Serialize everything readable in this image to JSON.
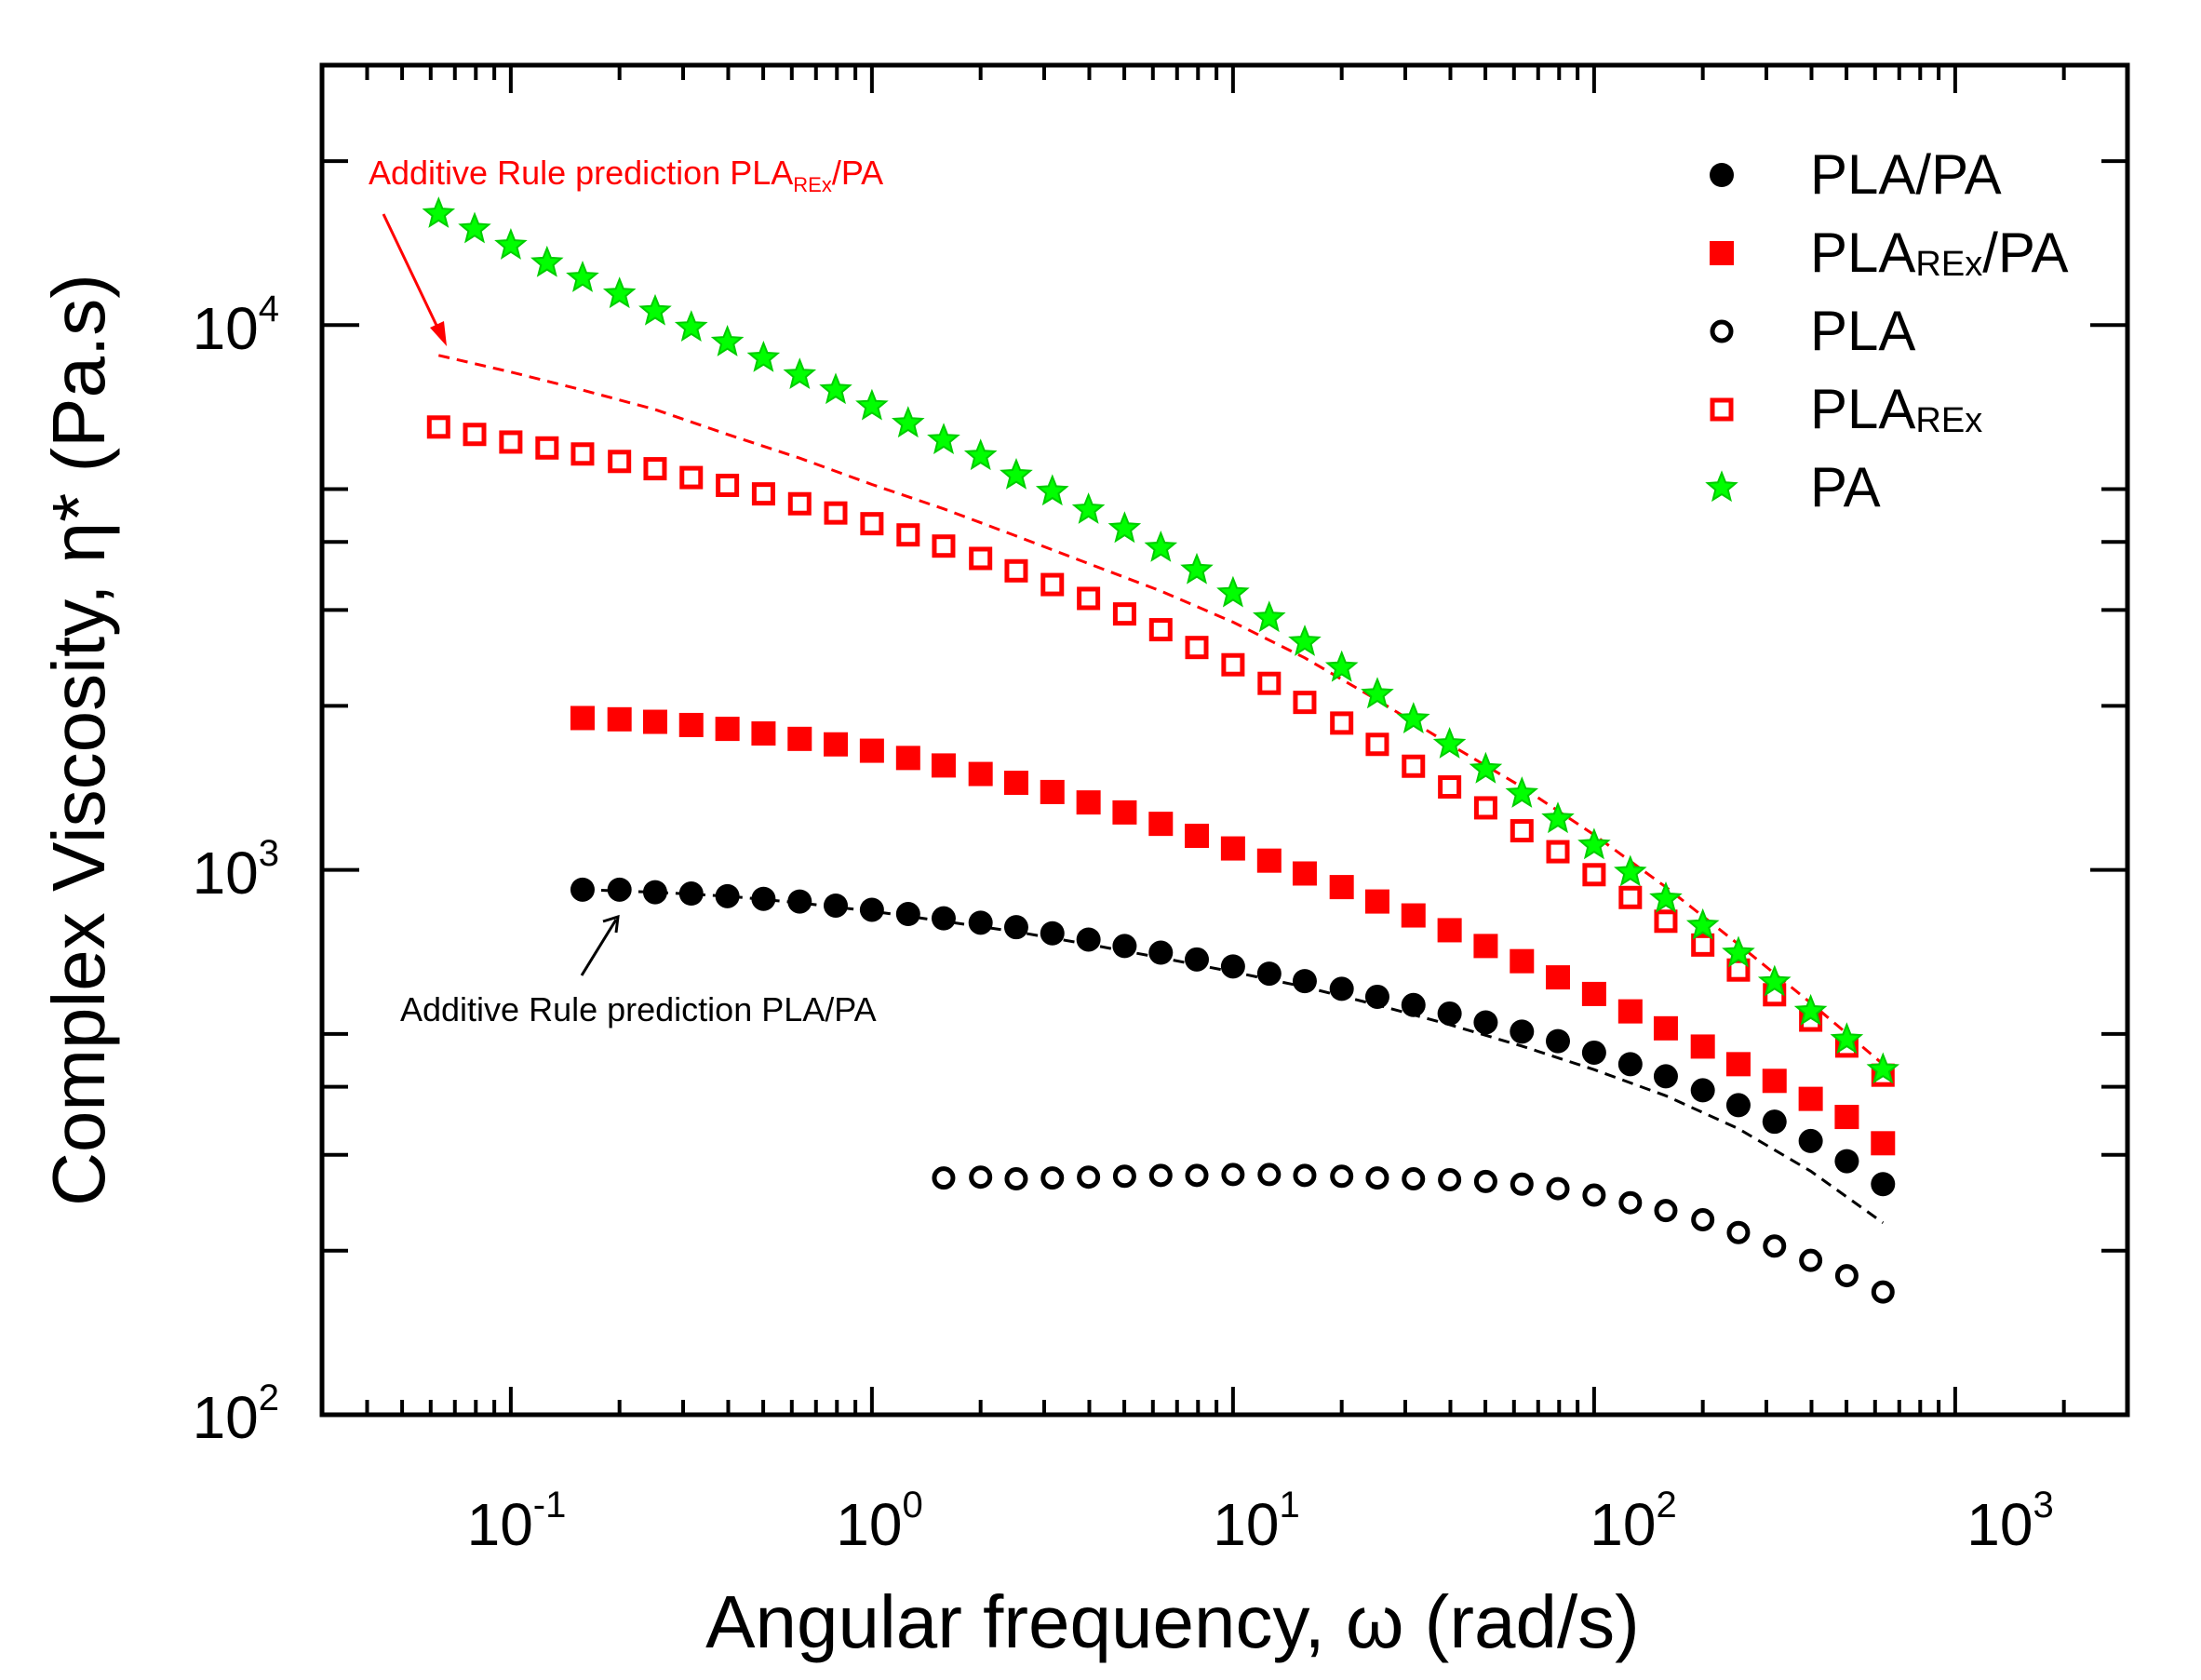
{
  "chart_data": {
    "type": "scatter",
    "xscale": "log",
    "yscale": "log",
    "xlim": [
      0.03,
      3000
    ],
    "ylim": [
      100,
      30000
    ],
    "xlabel": "Angular frequency, ω (rad/s)",
    "ylabel": "Complex Viscosity, η* (Pa.s)",
    "x_ticks": [
      {
        "base": "10",
        "exp": "-1",
        "value": 0.1
      },
      {
        "base": "10",
        "exp": "0",
        "value": 1
      },
      {
        "base": "10",
        "exp": "1",
        "value": 10
      },
      {
        "base": "10",
        "exp": "2",
        "value": 100
      },
      {
        "base": "10",
        "exp": "3",
        "value": 1000
      }
    ],
    "y_ticks": [
      {
        "base": "10",
        "exp": "2",
        "value": 100
      },
      {
        "base": "10",
        "exp": "3",
        "value": 1000
      },
      {
        "base": "10",
        "exp": "4",
        "value": 10000
      }
    ],
    "series": [
      {
        "name": "PLA/PA",
        "main": "PLA/PA",
        "sub": "",
        "suffix": "",
        "marker": "circle-filled",
        "color": "#000000",
        "x": [
          0.158,
          0.2,
          0.251,
          0.316,
          0.398,
          0.501,
          0.631,
          0.794,
          1.0,
          1.26,
          1.58,
          2.0,
          2.51,
          3.16,
          3.98,
          5.01,
          6.31,
          7.94,
          10.0,
          12.6,
          15.8,
          20.0,
          25.1,
          31.6,
          39.8,
          50.1,
          63.1,
          79.4,
          100.0,
          126.0,
          158.0,
          200.0,
          251.0,
          316.0,
          398.0,
          501.0,
          631.0
        ],
        "y": [
          920,
          920,
          910,
          905,
          895,
          885,
          875,
          860,
          845,
          830,
          815,
          800,
          785,
          765,
          745,
          725,
          705,
          685,
          665,
          645,
          625,
          605,
          585,
          565,
          545,
          525,
          505,
          485,
          462,
          440,
          418,
          394,
          370,
          345,
          318,
          292,
          265
        ]
      },
      {
        "name": "PLAREx/PA",
        "main": "PLA",
        "sub": "REx",
        "suffix": "/PA",
        "marker": "square-filled",
        "color": "#ff0000",
        "x": [
          0.158,
          0.2,
          0.251,
          0.316,
          0.398,
          0.501,
          0.631,
          0.794,
          1.0,
          1.26,
          1.58,
          2.0,
          2.51,
          3.16,
          3.98,
          5.01,
          6.31,
          7.94,
          10.0,
          12.6,
          15.8,
          20.0,
          25.1,
          31.6,
          39.8,
          50.1,
          63.1,
          79.4,
          100.0,
          126.0,
          158.0,
          200.0,
          251.0,
          316.0,
          398.0,
          501.0,
          631.0
        ],
        "y": [
          1900,
          1890,
          1870,
          1845,
          1815,
          1780,
          1740,
          1700,
          1655,
          1605,
          1555,
          1500,
          1445,
          1390,
          1330,
          1275,
          1215,
          1155,
          1095,
          1040,
          985,
          930,
          875,
          825,
          775,
          725,
          680,
          635,
          592,
          550,
          512,
          474,
          440,
          410,
          380,
          352,
          315
        ]
      },
      {
        "name": "PLA",
        "main": "PLA",
        "sub": "",
        "suffix": "",
        "marker": "circle-open",
        "color": "#000000",
        "x": [
          1.58,
          2.0,
          2.51,
          3.16,
          3.98,
          5.01,
          6.31,
          7.94,
          10.0,
          12.6,
          15.8,
          20.0,
          25.1,
          31.6,
          39.8,
          50.1,
          63.1,
          79.4,
          100.0,
          126.0,
          158.0,
          200.0,
          251.0,
          316.0,
          398.0,
          501.0,
          631.0
        ],
        "y": [
          272,
          273,
          271,
          272,
          273,
          274,
          275,
          275,
          276,
          276,
          275,
          274,
          272,
          271,
          270,
          268,
          265,
          260,
          253,
          245,
          237,
          228,
          216,
          204,
          192,
          180,
          168
        ]
      },
      {
        "name": "PLAREx",
        "main": "PLA",
        "sub": "REx",
        "suffix": "",
        "marker": "square-open",
        "color": "#ff0000",
        "x": [
          0.0631,
          0.0794,
          0.1,
          0.126,
          0.158,
          0.2,
          0.251,
          0.316,
          0.398,
          0.501,
          0.631,
          0.794,
          1.0,
          1.26,
          1.58,
          2.0,
          2.51,
          3.16,
          3.98,
          5.01,
          6.31,
          7.94,
          10.0,
          12.6,
          15.8,
          20.0,
          25.1,
          31.6,
          39.8,
          50.1,
          63.1,
          79.4,
          100.0,
          126.0,
          158.0,
          200.0,
          251.0,
          316.0,
          398.0,
          501.0,
          631.0
        ],
        "y": [
          6500,
          6300,
          6100,
          5950,
          5800,
          5620,
          5450,
          5250,
          5080,
          4900,
          4700,
          4520,
          4320,
          4120,
          3930,
          3730,
          3540,
          3340,
          3150,
          2950,
          2760,
          2560,
          2380,
          2200,
          2030,
          1860,
          1700,
          1550,
          1420,
          1300,
          1180,
          1080,
          980,
          890,
          805,
          728,
          655,
          590,
          530,
          475,
          420
        ]
      },
      {
        "name": "PA",
        "main": "PA",
        "sub": "",
        "suffix": "",
        "marker": "star",
        "color": "#00ee00",
        "x": [
          0.0631,
          0.0794,
          0.1,
          0.126,
          0.158,
          0.2,
          0.251,
          0.316,
          0.398,
          0.501,
          0.631,
          0.794,
          1.0,
          1.26,
          1.58,
          2.0,
          2.51,
          3.16,
          3.98,
          5.01,
          6.31,
          7.94,
          10.0,
          12.6,
          15.8,
          20.0,
          25.1,
          31.6,
          39.8,
          50.1,
          63.1,
          79.4,
          100.0,
          126.0,
          158.0,
          200.0,
          251.0,
          316.0,
          398.0,
          501.0,
          631.0
        ],
        "y": [
          16000,
          15000,
          14000,
          13000,
          12200,
          11400,
          10600,
          9900,
          9300,
          8700,
          8100,
          7600,
          7100,
          6600,
          6150,
          5750,
          5300,
          4950,
          4580,
          4230,
          3900,
          3550,
          3220,
          2900,
          2620,
          2350,
          2100,
          1890,
          1700,
          1530,
          1380,
          1240,
          1110,
          990,
          885,
          790,
          703,
          622,
          550,
          488,
          430
        ]
      }
    ],
    "prediction_lines": [
      {
        "name": "Additive Rule prediction PLAREx/PA",
        "color": "#ff0000",
        "x": [
          0.0631,
          0.1,
          0.158,
          0.251,
          0.398,
          0.631,
          1.0,
          1.58,
          2.51,
          3.98,
          6.31,
          10.0,
          15.8,
          25.1,
          39.8,
          63.1,
          100.0,
          158.0,
          251.0,
          398.0,
          631.0
        ],
        "y": [
          8800,
          8200,
          7600,
          7000,
          6300,
          5700,
          5100,
          4600,
          4100,
          3650,
          3250,
          2850,
          2450,
          2050,
          1700,
          1420,
          1160,
          930,
          730,
          570,
          440
        ]
      },
      {
        "name": "Additive Rule prediction PLA/PA",
        "color": "#000000",
        "x": [
          0.158,
          0.251,
          0.398,
          0.631,
          1.0,
          1.58,
          2.51,
          3.98,
          6.31,
          10.0,
          15.8,
          25.1,
          39.8,
          63.1,
          100.0,
          158.0,
          251.0,
          398.0,
          631.0
        ],
        "y": [
          920,
          910,
          895,
          870,
          840,
          805,
          770,
          730,
          690,
          650,
          610,
          565,
          520,
          475,
          430,
          385,
          335,
          280,
          225
        ]
      }
    ],
    "annotations": [
      {
        "prefix": "Additive Rule prediction PLA",
        "sub": "REx",
        "suffix": "/PA",
        "color": "#ff0000"
      },
      {
        "prefix": "Additive Rule prediction PLA/PA",
        "sub": "",
        "suffix": "",
        "color": "#000000"
      }
    ],
    "legend_position": "top-right"
  }
}
